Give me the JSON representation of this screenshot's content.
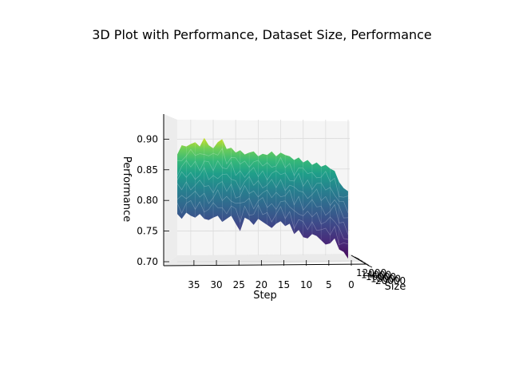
{
  "chart_data": {
    "type": "surface",
    "title": "3D Plot with Performance, Dataset Size, Performance",
    "xlabel": "Step",
    "ylabel": "Size",
    "zlabel": "Performance",
    "x_ticks": [
      35,
      30,
      25,
      20,
      15,
      10,
      5,
      0
    ],
    "y_ticks": [
      "12000",
      "14000",
      "16000",
      "18000",
      "20000"
    ],
    "z_ticks": [
      "0.70",
      "0.75",
      "0.80",
      "0.85",
      "0.90"
    ],
    "xlim": [
      0,
      38
    ],
    "zlim": [
      0.7,
      0.92
    ],
    "grid": true,
    "colormap": "viridis",
    "surface": {
      "steps": [
        38,
        37,
        36,
        35,
        34,
        33,
        32,
        31,
        30,
        29,
        28,
        27,
        26,
        25,
        24,
        23,
        22,
        21,
        20,
        19,
        18,
        17,
        16,
        15,
        14,
        13,
        12,
        11,
        10,
        9,
        8,
        7,
        6,
        5,
        4,
        3,
        2,
        1,
        0
      ],
      "top_edge": [
        0.875,
        0.89,
        0.888,
        0.892,
        0.895,
        0.888,
        0.902,
        0.89,
        0.885,
        0.895,
        0.9,
        0.884,
        0.886,
        0.878,
        0.882,
        0.875,
        0.878,
        0.88,
        0.872,
        0.876,
        0.874,
        0.88,
        0.872,
        0.878,
        0.874,
        0.872,
        0.866,
        0.87,
        0.862,
        0.866,
        0.858,
        0.862,
        0.855,
        0.858,
        0.852,
        0.848,
        0.83,
        0.82,
        0.815
      ],
      "bottom_edge": [
        0.778,
        0.77,
        0.78,
        0.775,
        0.772,
        0.778,
        0.77,
        0.768,
        0.772,
        0.775,
        0.765,
        0.77,
        0.775,
        0.762,
        0.75,
        0.772,
        0.768,
        0.76,
        0.77,
        0.765,
        0.76,
        0.755,
        0.762,
        0.766,
        0.758,
        0.762,
        0.745,
        0.752,
        0.74,
        0.738,
        0.745,
        0.742,
        0.735,
        0.728,
        0.73,
        0.738,
        0.72,
        0.716,
        0.705
      ]
    }
  }
}
